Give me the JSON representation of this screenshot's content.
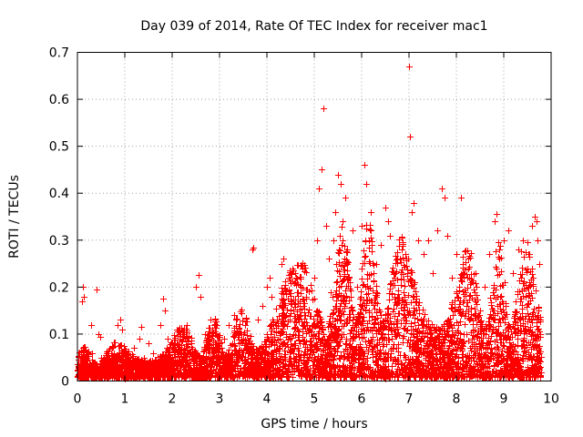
{
  "chart_data": {
    "type": "scatter",
    "title": "Day 039 of 2014, Rate Of TEC Index for receiver mac1",
    "xlabel": "GPS time / hours",
    "ylabel": "ROTI / TECUs",
    "xlim": [
      0,
      10
    ],
    "ylim": [
      0,
      0.7
    ],
    "xticks": [
      "0",
      "1",
      "2",
      "3",
      "4",
      "5",
      "6",
      "7",
      "8",
      "9",
      "10"
    ],
    "yticks": [
      "0",
      "0.1",
      "0.2",
      "0.3",
      "0.4",
      "0.5",
      "0.6",
      "0.7"
    ],
    "grid": true,
    "marker": "+",
    "marker_color": "#ff0000",
    "series": [
      {
        "name": "ROTI",
        "points": [
          [
            0.02,
            0.03
          ],
          [
            0.05,
            0.02
          ],
          [
            0.08,
            0.01
          ],
          [
            0.1,
            0.17
          ],
          [
            0.12,
            0.2
          ],
          [
            0.14,
            0.18
          ],
          [
            0.15,
            0.04
          ],
          [
            0.2,
            0.05
          ],
          [
            0.25,
            0.03
          ],
          [
            0.28,
            0.12
          ],
          [
            0.3,
            0.06
          ],
          [
            0.35,
            0.04
          ],
          [
            0.4,
            0.195
          ],
          [
            0.45,
            0.1
          ],
          [
            0.48,
            0.095
          ],
          [
            0.5,
            0.05
          ],
          [
            0.55,
            0.02
          ],
          [
            0.6,
            0.03
          ],
          [
            0.7,
            0.02
          ],
          [
            0.8,
            0.025
          ],
          [
            0.85,
            0.12
          ],
          [
            0.9,
            0.13
          ],
          [
            0.95,
            0.11
          ],
          [
            1.0,
            0.03
          ],
          [
            1.1,
            0.04
          ],
          [
            1.2,
            0.07
          ],
          [
            1.3,
            0.09
          ],
          [
            1.35,
            0.115
          ],
          [
            1.4,
            0.05
          ],
          [
            1.5,
            0.08
          ],
          [
            1.6,
            0.06
          ],
          [
            1.7,
            0.04
          ],
          [
            1.75,
            0.12
          ],
          [
            1.8,
            0.175
          ],
          [
            1.85,
            0.15
          ],
          [
            1.9,
            0.09
          ],
          [
            2.0,
            0.05
          ],
          [
            2.1,
            0.11
          ],
          [
            2.2,
            0.06
          ],
          [
            2.3,
            0.12
          ],
          [
            2.4,
            0.08
          ],
          [
            2.5,
            0.2
          ],
          [
            2.55,
            0.225
          ],
          [
            2.6,
            0.18
          ],
          [
            2.7,
            0.1
          ],
          [
            2.8,
            0.13
          ],
          [
            2.9,
            0.07
          ],
          [
            3.0,
            0.05
          ],
          [
            3.1,
            0.09
          ],
          [
            3.2,
            0.12
          ],
          [
            3.3,
            0.14
          ],
          [
            3.4,
            0.08
          ],
          [
            3.5,
            0.1
          ],
          [
            3.6,
            0.06
          ],
          [
            3.7,
            0.28
          ],
          [
            3.72,
            0.285
          ],
          [
            3.8,
            0.13
          ],
          [
            3.9,
            0.16
          ],
          [
            4.0,
            0.2
          ],
          [
            4.05,
            0.22
          ],
          [
            4.1,
            0.18
          ],
          [
            4.2,
            0.12
          ],
          [
            4.3,
            0.25
          ],
          [
            4.35,
            0.26
          ],
          [
            4.4,
            0.1
          ],
          [
            4.5,
            0.15
          ],
          [
            4.6,
            0.21
          ],
          [
            4.7,
            0.17
          ],
          [
            4.8,
            0.14
          ],
          [
            4.9,
            0.11
          ],
          [
            5.0,
            0.22
          ],
          [
            5.05,
            0.3
          ],
          [
            5.1,
            0.41
          ],
          [
            5.15,
            0.45
          ],
          [
            5.2,
            0.58
          ],
          [
            5.25,
            0.33
          ],
          [
            5.3,
            0.26
          ],
          [
            5.35,
            0.19
          ],
          [
            5.4,
            0.3
          ],
          [
            5.45,
            0.36
          ],
          [
            5.5,
            0.44
          ],
          [
            5.55,
            0.42
          ],
          [
            5.6,
            0.34
          ],
          [
            5.65,
            0.39
          ],
          [
            5.7,
            0.28
          ],
          [
            5.8,
            0.32
          ],
          [
            5.9,
            0.2
          ],
          [
            6.0,
            0.33
          ],
          [
            6.05,
            0.46
          ],
          [
            6.1,
            0.42
          ],
          [
            6.15,
            0.3
          ],
          [
            6.2,
            0.36
          ],
          [
            6.3,
            0.25
          ],
          [
            6.4,
            0.29
          ],
          [
            6.5,
            0.37
          ],
          [
            6.55,
            0.34
          ],
          [
            6.6,
            0.31
          ],
          [
            6.7,
            0.22
          ],
          [
            6.8,
            0.26
          ],
          [
            6.9,
            0.18
          ],
          [
            7.0,
            0.67
          ],
          [
            7.02,
            0.52
          ],
          [
            7.05,
            0.36
          ],
          [
            7.1,
            0.38
          ],
          [
            7.2,
            0.3
          ],
          [
            7.3,
            0.27
          ],
          [
            7.4,
            0.3
          ],
          [
            7.5,
            0.23
          ],
          [
            7.6,
            0.32
          ],
          [
            7.7,
            0.41
          ],
          [
            7.75,
            0.39
          ],
          [
            7.8,
            0.31
          ],
          [
            7.9,
            0.22
          ],
          [
            8.0,
            0.27
          ],
          [
            8.1,
            0.39
          ],
          [
            8.2,
            0.19
          ],
          [
            8.3,
            0.21
          ],
          [
            8.4,
            0.23
          ],
          [
            8.5,
            0.15
          ],
          [
            8.6,
            0.2
          ],
          [
            8.7,
            0.27
          ],
          [
            8.8,
            0.34
          ],
          [
            8.85,
            0.355
          ],
          [
            8.9,
            0.26
          ],
          [
            9.0,
            0.3
          ],
          [
            9.1,
            0.32
          ],
          [
            9.2,
            0.23
          ],
          [
            9.3,
            0.28
          ],
          [
            9.4,
            0.3
          ],
          [
            9.5,
            0.24
          ],
          [
            9.6,
            0.33
          ],
          [
            9.65,
            0.35
          ],
          [
            9.7,
            0.34
          ],
          [
            9.72,
            0.3
          ],
          [
            9.75,
            0.25
          ],
          [
            0.3,
            0.01
          ],
          [
            0.6,
            0.01
          ],
          [
            1.0,
            0.005
          ],
          [
            2.0,
            0.01
          ],
          [
            3.0,
            0.015
          ],
          [
            4.0,
            0.02
          ],
          [
            5.0,
            0.02
          ],
          [
            6.0,
            0.01
          ],
          [
            6.5,
            0.005
          ],
          [
            7.0,
            0.01
          ],
          [
            8.0,
            0.02
          ],
          [
            8.5,
            0.03
          ],
          [
            9.0,
            0.02
          ],
          [
            9.5,
            0.03
          ],
          [
            9.7,
            0.02
          ]
        ]
      }
    ],
    "density_fill": {
      "description": "dense cloud of additional ROTI samples following a rising envelope over the day",
      "x_start": 0.0,
      "x_end": 9.78,
      "samples": 5200,
      "seed": 39,
      "envelope": [
        [
          0,
          0.045
        ],
        [
          1,
          0.055
        ],
        [
          2,
          0.075
        ],
        [
          3,
          0.09
        ],
        [
          4,
          0.12
        ],
        [
          5,
          0.2
        ],
        [
          6,
          0.24
        ],
        [
          7,
          0.2
        ],
        [
          8,
          0.19
        ],
        [
          9,
          0.2
        ],
        [
          9.78,
          0.22
        ]
      ]
    }
  }
}
